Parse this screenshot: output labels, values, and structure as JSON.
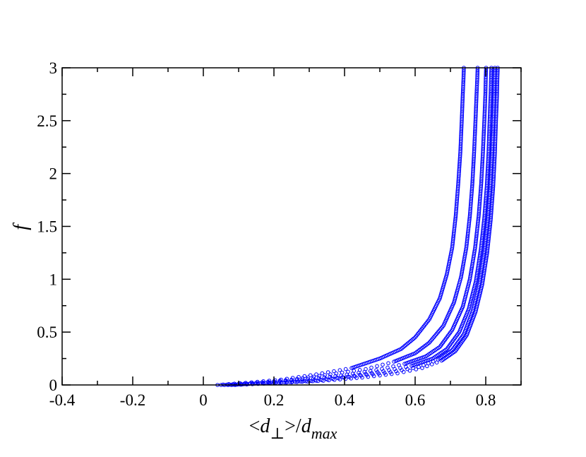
{
  "chart_data": {
    "type": "scatter",
    "title": "",
    "xlabel": {
      "lt": "<",
      "d": "d",
      "perp": "⊥",
      "gt_slash": ">/",
      "max": "max"
    },
    "ylabel": "f",
    "xlim": [
      -0.4,
      0.9
    ],
    "ylim": [
      0,
      3
    ],
    "xticks": [
      -0.4,
      -0.2,
      0,
      0.2,
      0.4,
      0.6,
      0.8
    ],
    "xtick_labels": [
      "-0.4",
      "-0.2",
      "0",
      "0.2",
      "0.4",
      "0.6",
      "0.8"
    ],
    "yticks": [
      0,
      0.5,
      1,
      1.5,
      2,
      2.5,
      3
    ],
    "ytick_labels": [
      "0",
      "0.5",
      "1",
      "1.5",
      "2",
      "2.5",
      "3"
    ],
    "grid": false,
    "legend": "none",
    "marker": "open-circle",
    "color": "#0000ff",
    "series": [
      {
        "x": [
          0.04,
          0.12,
          0.22,
          0.32,
          0.42,
          0.5,
          0.56,
          0.6,
          0.64,
          0.67,
          0.69,
          0.705,
          0.715,
          0.722,
          0.728,
          0.732,
          0.735,
          0.737,
          0.738
        ],
        "y": [
          0.0,
          0.02,
          0.05,
          0.1,
          0.16,
          0.25,
          0.34,
          0.45,
          0.62,
          0.82,
          1.05,
          1.3,
          1.6,
          1.9,
          2.2,
          2.5,
          2.75,
          2.9,
          3.0
        ]
      },
      {
        "x": [
          0.05,
          0.15,
          0.25,
          0.36,
          0.46,
          0.54,
          0.6,
          0.64,
          0.68,
          0.71,
          0.73,
          0.745,
          0.755,
          0.762,
          0.767,
          0.771,
          0.774,
          0.776,
          0.777
        ],
        "y": [
          0.0,
          0.02,
          0.05,
          0.1,
          0.15,
          0.22,
          0.3,
          0.4,
          0.56,
          0.78,
          1.02,
          1.3,
          1.6,
          1.9,
          2.2,
          2.5,
          2.75,
          2.9,
          3.0
        ]
      },
      {
        "x": [
          0.06,
          0.17,
          0.28,
          0.39,
          0.49,
          0.57,
          0.63,
          0.67,
          0.705,
          0.735,
          0.755,
          0.77,
          0.78,
          0.787,
          0.792,
          0.796,
          0.799,
          0.8,
          0.801
        ],
        "y": [
          0.0,
          0.02,
          0.05,
          0.09,
          0.14,
          0.2,
          0.27,
          0.36,
          0.52,
          0.74,
          1.0,
          1.3,
          1.6,
          1.9,
          2.2,
          2.5,
          2.75,
          2.9,
          3.0
        ]
      },
      {
        "x": [
          0.07,
          0.19,
          0.3,
          0.41,
          0.51,
          0.59,
          0.65,
          0.69,
          0.725,
          0.752,
          0.772,
          0.786,
          0.796,
          0.803,
          0.808,
          0.811,
          0.814,
          0.815,
          0.816
        ],
        "y": [
          0.0,
          0.02,
          0.04,
          0.08,
          0.13,
          0.18,
          0.25,
          0.34,
          0.5,
          0.72,
          0.98,
          1.28,
          1.58,
          1.88,
          2.2,
          2.5,
          2.75,
          2.9,
          3.0
        ]
      },
      {
        "x": [
          0.08,
          0.2,
          0.32,
          0.43,
          0.53,
          0.61,
          0.665,
          0.705,
          0.738,
          0.763,
          0.782,
          0.796,
          0.806,
          0.813,
          0.818,
          0.822,
          0.824,
          0.825,
          0.826
        ],
        "y": [
          0.0,
          0.02,
          0.04,
          0.08,
          0.12,
          0.17,
          0.24,
          0.33,
          0.48,
          0.7,
          0.96,
          1.26,
          1.57,
          1.88,
          2.2,
          2.5,
          2.75,
          2.9,
          3.0
        ]
      },
      {
        "x": [
          0.09,
          0.22,
          0.34,
          0.45,
          0.55,
          0.62,
          0.675,
          0.714,
          0.746,
          0.771,
          0.79,
          0.804,
          0.814,
          0.821,
          0.826,
          0.829,
          0.832,
          0.833,
          0.834
        ],
        "y": [
          0.0,
          0.02,
          0.04,
          0.07,
          0.11,
          0.16,
          0.23,
          0.32,
          0.47,
          0.69,
          0.95,
          1.25,
          1.56,
          1.87,
          2.2,
          2.5,
          2.75,
          2.9,
          3.0
        ]
      }
    ]
  }
}
